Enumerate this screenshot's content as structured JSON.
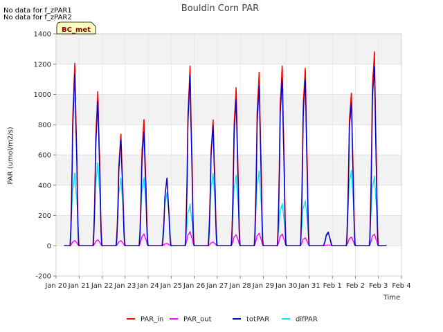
{
  "chart_data": {
    "type": "line",
    "title": "Bouldin Corn PAR",
    "xlabel": "Time",
    "ylabel": "PAR (umol/m2/s)",
    "ylim": [
      -200,
      1400
    ],
    "xlim": [
      0,
      15
    ],
    "yticks": [
      -200,
      0,
      200,
      400,
      600,
      800,
      1000,
      1200,
      1400
    ],
    "xticks": [
      {
        "x": 0,
        "label": "Jan 20"
      },
      {
        "x": 1,
        "label": "Jan 21"
      },
      {
        "x": 2,
        "label": "Jan 22"
      },
      {
        "x": 3,
        "label": "Jan 23"
      },
      {
        "x": 4,
        "label": "Jan 24"
      },
      {
        "x": 5,
        "label": "Jan 25"
      },
      {
        "x": 6,
        "label": "Jan 26"
      },
      {
        "x": 7,
        "label": "Jan 27"
      },
      {
        "x": 8,
        "label": "Jan 28"
      },
      {
        "x": 9,
        "label": "Jan 29"
      },
      {
        "x": 10,
        "label": "Jan 30"
      },
      {
        "x": 11,
        "label": "Jan 31"
      },
      {
        "x": 12,
        "label": "Feb 1"
      },
      {
        "x": 13,
        "label": "Feb 2"
      },
      {
        "x": 14,
        "label": "Feb 3"
      },
      {
        "x": 15,
        "label": "Feb 4"
      }
    ],
    "grid": true,
    "legend_position": "bottom",
    "notes": [
      "No data for f_zPAR1",
      "No data for f_zPAR2"
    ],
    "badge": "BC_met",
    "days": [
      {
        "day": 0.8,
        "par_in": 1230,
        "tot": 1160,
        "dif": 490,
        "out": 35
      },
      {
        "day": 1.8,
        "par_in": 1045,
        "tot": 980,
        "dif": 560,
        "out": 40
      },
      {
        "day": 2.8,
        "par_in": 760,
        "tot": 720,
        "dif": 460,
        "out": 35
      },
      {
        "day": 3.8,
        "par_in": 860,
        "tot": 780,
        "dif": 460,
        "out": 80
      },
      {
        "day": 4.8,
        "par_in": 460,
        "tot": 460,
        "dif": 360,
        "out": 15
      },
      {
        "day": 5.8,
        "par_in": 1215,
        "tot": 1150,
        "dif": 280,
        "out": 95
      },
      {
        "day": 6.8,
        "par_in": 855,
        "tot": 820,
        "dif": 490,
        "out": 25
      },
      {
        "day": 7.8,
        "par_in": 1080,
        "tot": 1000,
        "dif": 480,
        "out": 75
      },
      {
        "day": 8.8,
        "par_in": 1190,
        "tot": 1100,
        "dif": 510,
        "out": 85
      },
      {
        "day": 9.8,
        "par_in": 1240,
        "tot": 1155,
        "dif": 290,
        "out": 80
      },
      {
        "day": 10.8,
        "par_in": 1230,
        "tot": 1150,
        "dif": 310,
        "out": 55
      },
      {
        "day": 11.8,
        "par_in": 90,
        "tot": 95,
        "dif": 80,
        "out": 5
      },
      {
        "day": 12.8,
        "par_in": 1065,
        "tot": 1000,
        "dif": 520,
        "out": 60
      },
      {
        "day": 13.8,
        "par_in": 1350,
        "tot": 1250,
        "dif": 480,
        "out": 80
      }
    ],
    "series": [
      {
        "name": "PAR_in",
        "color": "#ff0000"
      },
      {
        "name": "PAR_out",
        "color": "#ff00ff"
      },
      {
        "name": "totPAR",
        "color": "#0000cc"
      },
      {
        "name": "difPAR",
        "color": "#00e5ff"
      }
    ]
  }
}
